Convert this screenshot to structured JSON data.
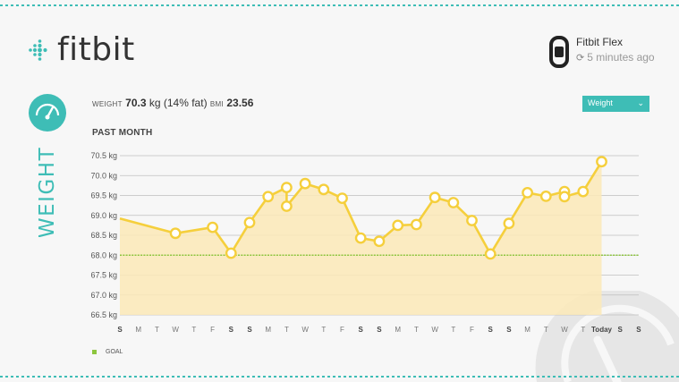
{
  "brand": {
    "name": "fitbit"
  },
  "device": {
    "name": "Fitbit Flex",
    "sync_status": "5 minutes ago",
    "icon": "wristband-icon"
  },
  "page": {
    "vertical_title": "WEIGHT"
  },
  "stats": {
    "weight_label": "WEIGHT",
    "weight_value": "70.3",
    "weight_unit": "kg",
    "fat_text": "(14% fat)",
    "bmi_label": "BMI",
    "bmi_value": "23.56"
  },
  "metric_select": {
    "selected": "Weight"
  },
  "section_title": "PAST MONTH",
  "legend": {
    "goal_label": "GOAL"
  },
  "colors": {
    "accent": "#3ebdb6",
    "line": "#f5cf3c",
    "fill": "#fbe9b7",
    "goal": "#8dc63f"
  },
  "chart_data": {
    "type": "line",
    "ylim": [
      66.5,
      70.5
    ],
    "y_ticks": [
      "66.5 kg",
      "67.0 kg",
      "67.5 kg",
      "68.0 kg",
      "68.5 kg",
      "69.0 kg",
      "69.5 kg",
      "70.0 kg",
      "70.5 kg"
    ],
    "x_ticks": [
      {
        "label": "S",
        "bold": true
      },
      {
        "label": "M",
        "bold": false
      },
      {
        "label": "T",
        "bold": false
      },
      {
        "label": "W",
        "bold": false
      },
      {
        "label": "T",
        "bold": false
      },
      {
        "label": "F",
        "bold": false
      },
      {
        "label": "S",
        "bold": true
      },
      {
        "label": "S",
        "bold": true
      },
      {
        "label": "M",
        "bold": false
      },
      {
        "label": "T",
        "bold": false
      },
      {
        "label": "W",
        "bold": false
      },
      {
        "label": "T",
        "bold": false
      },
      {
        "label": "F",
        "bold": false
      },
      {
        "label": "S",
        "bold": true
      },
      {
        "label": "S",
        "bold": true
      },
      {
        "label": "M",
        "bold": false
      },
      {
        "label": "T",
        "bold": false
      },
      {
        "label": "W",
        "bold": false
      },
      {
        "label": "T",
        "bold": false
      },
      {
        "label": "F",
        "bold": false
      },
      {
        "label": "S",
        "bold": true
      },
      {
        "label": "S",
        "bold": true
      },
      {
        "label": "M",
        "bold": false
      },
      {
        "label": "T",
        "bold": false
      },
      {
        "label": "W",
        "bold": false
      },
      {
        "label": "T",
        "bold": false
      },
      {
        "label": "Today",
        "bold": true
      },
      {
        "label": "S",
        "bold": true
      },
      {
        "label": "S",
        "bold": true
      }
    ],
    "goal": 68.0,
    "start_value": 68.92,
    "points": [
      {
        "day": 3,
        "value": 68.55
      },
      {
        "day": 5,
        "value": 68.7
      },
      {
        "day": 6,
        "value": 68.05
      },
      {
        "day": 7,
        "value": 68.82
      },
      {
        "day": 8,
        "value": 69.47
      },
      {
        "day": 9,
        "value": 69.7
      },
      {
        "day": 9,
        "value": 69.23
      },
      {
        "day": 10,
        "value": 69.8
      },
      {
        "day": 11,
        "value": 69.65
      },
      {
        "day": 12,
        "value": 69.43
      },
      {
        "day": 13,
        "value": 68.43
      },
      {
        "day": 14,
        "value": 68.35
      },
      {
        "day": 15,
        "value": 68.75
      },
      {
        "day": 16,
        "value": 68.77
      },
      {
        "day": 17,
        "value": 69.45
      },
      {
        "day": 18,
        "value": 69.32
      },
      {
        "day": 19,
        "value": 68.87
      },
      {
        "day": 20,
        "value": 68.03
      },
      {
        "day": 21,
        "value": 68.8
      },
      {
        "day": 22,
        "value": 69.57
      },
      {
        "day": 23,
        "value": 69.48
      },
      {
        "day": 24,
        "value": 69.6
      },
      {
        "day": 24,
        "value": 69.47
      },
      {
        "day": 25,
        "value": 69.6
      },
      {
        "day": 26,
        "value": 70.35
      }
    ]
  }
}
